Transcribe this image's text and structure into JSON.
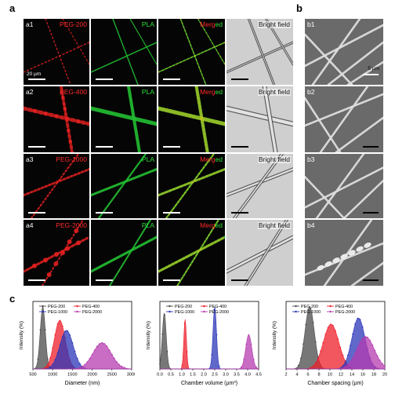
{
  "panel_labels": {
    "a": "a",
    "b": "b",
    "c": "c"
  },
  "fluor_rows": [
    {
      "id": "a1",
      "peg": "PEG-200"
    },
    {
      "id": "a2",
      "peg": "PEG-400"
    },
    {
      "id": "a3",
      "peg": "PEG-1000"
    },
    {
      "id": "a4",
      "peg": "PEG-2000"
    }
  ],
  "labels": {
    "pla": "PLA",
    "merged_a": "Merg",
    "merged_b": "ed",
    "bright": "Bright field"
  },
  "scalebars": {
    "a": "20 µm",
    "b": "5 µm"
  },
  "sem_tiles": [
    "b1",
    "b2",
    "b3",
    "b4"
  ],
  "colors": {
    "red": "#e02020",
    "green": "#22c032",
    "peg200": "#4a4a4a",
    "peg400": "#ee1e2a",
    "peg1000": "#2b36b8",
    "peg2000": "#b53bb0"
  },
  "legend": [
    "PEG-200",
    "PEG-400",
    "PEG-1000",
    "PEG-2000"
  ],
  "chart_data": [
    {
      "type": "area",
      "xlabel": "Diameter (nm)",
      "ylabel": "Intensity (%)",
      "xlim": [
        500,
        3000
      ],
      "xticks": [
        "500",
        "1000",
        "1500",
        "2000",
        "2500",
        "3000"
      ],
      "series": [
        {
          "name": "PEG-200",
          "peak": 750,
          "width": 65,
          "height": 1.0
        },
        {
          "name": "PEG-400",
          "peak": 1180,
          "width": 140,
          "height": 0.78
        },
        {
          "name": "PEG-1000",
          "peak": 1350,
          "width": 170,
          "height": 0.62
        },
        {
          "name": "PEG-2000",
          "peak": 2250,
          "width": 230,
          "height": 0.42
        }
      ]
    },
    {
      "type": "area",
      "xlabel": "Chamber volume (µm³)",
      "ylabel": "Intensity (%)",
      "xlim": [
        0,
        4.5
      ],
      "xticks": [
        "0.0",
        "0.5",
        "1.0",
        "1.5",
        "2.0",
        "2.5",
        "3.0",
        "3.5",
        "4.0",
        "4.5"
      ],
      "series": [
        {
          "name": "PEG-200",
          "peak": 0.2,
          "width": 0.09,
          "height": 0.9
        },
        {
          "name": "PEG-400",
          "peak": 1.15,
          "width": 0.06,
          "height": 0.8
        },
        {
          "name": "PEG-1000",
          "peak": 2.5,
          "width": 0.08,
          "height": 1.0
        },
        {
          "name": "PEG-2000",
          "peak": 4.05,
          "width": 0.14,
          "height": 0.55
        }
      ]
    },
    {
      "type": "area",
      "xlabel": "Chamber spacing (µm)",
      "ylabel": "Intensity (%)",
      "xlim": [
        2,
        20
      ],
      "xticks": [
        "2",
        "4",
        "6",
        "8",
        "10",
        "12",
        "14",
        "16",
        "18",
        "20"
      ],
      "series": [
        {
          "name": "PEG-200",
          "peak": 6.3,
          "width": 0.85,
          "height": 1.0
        },
        {
          "name": "PEG-400",
          "peak": 10.2,
          "width": 1.4,
          "height": 0.72
        },
        {
          "name": "PEG-1000",
          "peak": 15.2,
          "width": 1.2,
          "height": 0.82
        },
        {
          "name": "PEG-2000",
          "peak": 16.5,
          "width": 1.6,
          "height": 0.52
        }
      ]
    }
  ]
}
